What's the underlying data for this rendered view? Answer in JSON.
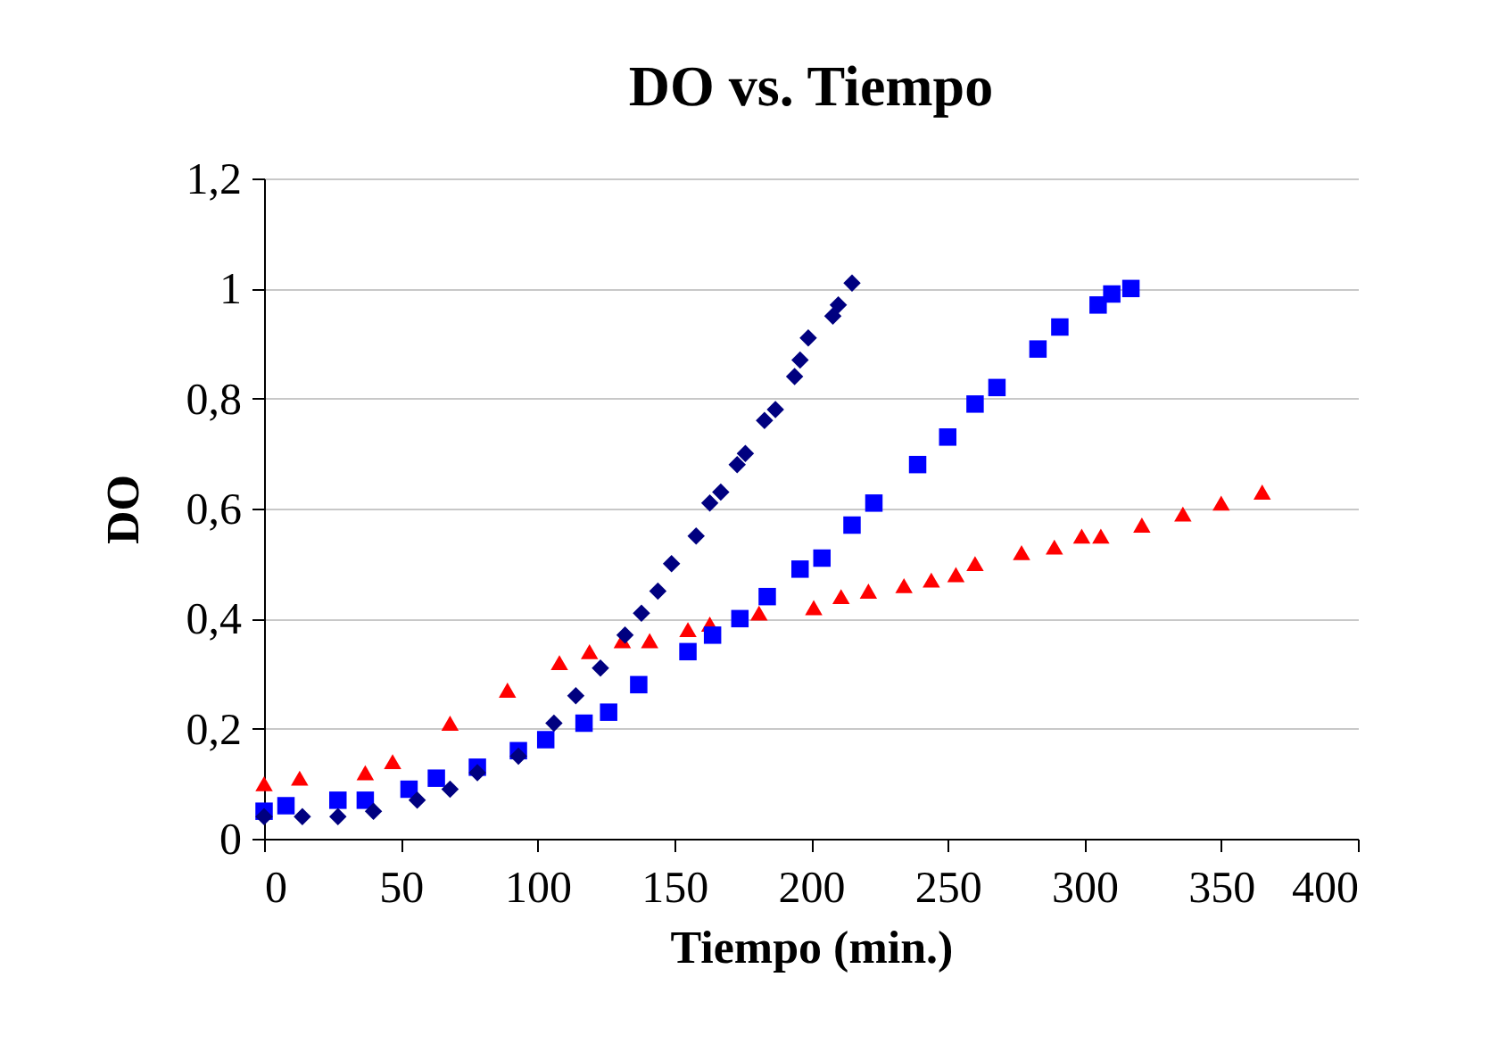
{
  "chart_data": {
    "type": "scatter",
    "title": "DO vs. Tiempo",
    "xlabel": "Tiempo (min.)",
    "ylabel": "DO",
    "xlim": [
      0,
      400
    ],
    "xticks": [
      0,
      50,
      100,
      150,
      200,
      250,
      300,
      350,
      400
    ],
    "ylim": [
      0,
      1.2
    ],
    "yticks": [
      0,
      {
        "value": 0.2,
        "label": "0,2"
      },
      {
        "value": 0.4,
        "label": "0,4"
      },
      {
        "value": 0.6,
        "label": "0,6"
      },
      {
        "value": 0.8,
        "label": "0,8"
      },
      1,
      {
        "value": 1.2,
        "label": "1,2"
      }
    ],
    "grid": "y",
    "series": [
      {
        "color": "#000080",
        "marker": "diamond",
        "x": [
          0,
          14,
          27,
          40,
          56,
          68,
          78,
          93,
          106,
          114,
          123,
          132,
          138,
          144,
          149,
          158,
          163,
          167,
          173,
          176,
          183,
          187,
          194,
          196,
          199,
          208,
          210,
          215
        ],
        "values": [
          0.04,
          0.04,
          0.04,
          0.05,
          0.07,
          0.09,
          0.12,
          0.15,
          0.21,
          0.26,
          0.31,
          0.37,
          0.41,
          0.45,
          0.5,
          0.55,
          0.61,
          0.63,
          0.68,
          0.7,
          0.76,
          0.78,
          0.84,
          0.87,
          0.91,
          0.95,
          0.97,
          1.01
        ]
      },
      {
        "color": "#0000ff",
        "marker": "square",
        "x": [
          0,
          8,
          27,
          37,
          53,
          63,
          78,
          93,
          103,
          117,
          126,
          137,
          155,
          164,
          174,
          184,
          196,
          204,
          215,
          223,
          239,
          250,
          260,
          268,
          283,
          291,
          305,
          310,
          317
        ],
        "values": [
          0.05,
          0.06,
          0.07,
          0.07,
          0.09,
          0.11,
          0.13,
          0.16,
          0.18,
          0.21,
          0.23,
          0.28,
          0.34,
          0.37,
          0.4,
          0.44,
          0.49,
          0.51,
          0.57,
          0.61,
          0.68,
          0.73,
          0.79,
          0.82,
          0.89,
          0.93,
          0.97,
          0.99,
          1.0
        ]
      },
      {
        "color": "#ff0000",
        "marker": "triangle",
        "x": [
          0,
          13,
          37,
          47,
          68,
          89,
          108,
          119,
          131,
          141,
          155,
          163,
          181,
          201,
          211,
          221,
          234,
          244,
          253,
          260,
          277,
          289,
          299,
          306,
          321,
          336,
          350,
          365
        ],
        "values": [
          0.1,
          0.11,
          0.12,
          0.14,
          0.21,
          0.27,
          0.32,
          0.34,
          0.36,
          0.36,
          0.38,
          0.39,
          0.41,
          0.42,
          0.44,
          0.45,
          0.46,
          0.47,
          0.48,
          0.5,
          0.52,
          0.53,
          0.55,
          0.55,
          0.57,
          0.59,
          0.61,
          0.63
        ]
      }
    ]
  }
}
